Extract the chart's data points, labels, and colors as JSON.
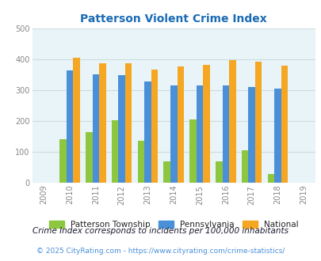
{
  "title": "Patterson Violent Crime Index",
  "years": [
    2009,
    2010,
    2011,
    2012,
    2013,
    2014,
    2015,
    2016,
    2017,
    2018,
    2019
  ],
  "data_years": [
    2010,
    2011,
    2012,
    2013,
    2014,
    2015,
    2016,
    2017,
    2018
  ],
  "patterson": [
    140,
    165,
    202,
    135,
    70,
    205,
    70,
    105,
    28
  ],
  "pennsylvania": [
    365,
    352,
    348,
    328,
    315,
    315,
    315,
    312,
    306
  ],
  "national": [
    405,
    387,
    387,
    366,
    378,
    383,
    397,
    393,
    379
  ],
  "patterson_color": "#8dc63f",
  "pennsylvania_color": "#4a90d9",
  "national_color": "#f5a623",
  "bg_color": "#e8f4f8",
  "title_color": "#1a6bb5",
  "legend_text_color": "#222222",
  "note_text": "Crime Index corresponds to incidents per 100,000 inhabitants",
  "copyright_text": "© 2025 CityRating.com - https://www.cityrating.com/crime-statistics/",
  "note_color": "#1a1a2e",
  "copyright_color": "#4a90d9",
  "ylim": [
    0,
    500
  ],
  "yticks": [
    0,
    100,
    200,
    300,
    400,
    500
  ],
  "bar_width": 0.26,
  "grid_color": "#ccdddd",
  "axis_label_color": "#888888"
}
